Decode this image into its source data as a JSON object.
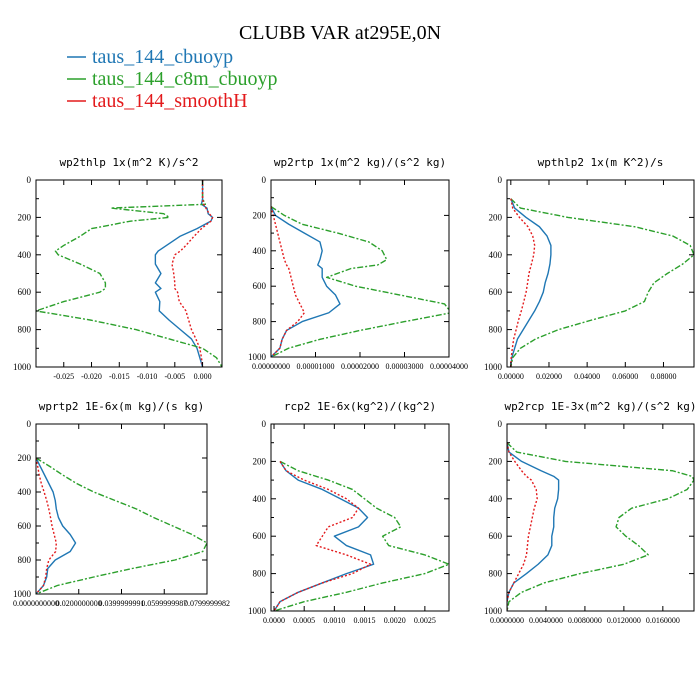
{
  "title": "CLUBB VAR at295E,0N",
  "colors": {
    "series1": "#1f77b4",
    "series2": "#2ca02c",
    "series3": "#e31a1c",
    "axis": "#000000"
  },
  "legend": [
    {
      "name": "taus_144_cbuoyp",
      "color": "#1f77b4",
      "dash": "solid"
    },
    {
      "name": "taus_144_c8m_cbuoyp",
      "color": "#2ca02c",
      "dash": "dashdot"
    },
    {
      "name": "taus_144_smoothH",
      "color": "#e31a1c",
      "dash": "dotted"
    }
  ],
  "chart_data": [
    {
      "type": "line",
      "title": "wp2thlp  1x(m^2 K)/s^2",
      "xlim": [
        -0.03,
        0.0035
      ],
      "ylim": [
        0,
        1000
      ],
      "xticks": [
        -0.025,
        -0.02,
        -0.015,
        -0.01,
        -0.005,
        0.0
      ],
      "xticklabels": [
        "-0.025",
        "-0.020",
        "-0.015",
        "-0.010",
        "-0.005",
        "0.000"
      ],
      "yticks": [
        0,
        200,
        400,
        600,
        800,
        1000
      ],
      "y": [
        0,
        100,
        130,
        150,
        180,
        200,
        220,
        260,
        300,
        350,
        380,
        400,
        450,
        500,
        550,
        580,
        600,
        650,
        700,
        750,
        800,
        850,
        900,
        950,
        1000
      ],
      "series": [
        {
          "name": "taus_144_cbuoyp",
          "x": [
            0.0,
            0.0,
            -0.0002,
            0.0008,
            0.001,
            0.0018,
            0.0015,
            -0.001,
            -0.004,
            -0.0065,
            -0.008,
            -0.0085,
            -0.0085,
            -0.0075,
            -0.0085,
            -0.0075,
            -0.0085,
            -0.0077,
            -0.0078,
            -0.006,
            -0.004,
            -0.002,
            -0.001,
            -0.0005,
            0.0
          ]
        },
        {
          "name": "taus_144_c8m_cbuoyp",
          "x": [
            0.0,
            0.0,
            0.0005,
            -0.0165,
            -0.007,
            -0.006,
            -0.013,
            -0.02,
            -0.022,
            -0.025,
            -0.0265,
            -0.026,
            -0.022,
            -0.0185,
            -0.0175,
            -0.0175,
            -0.0185,
            -0.025,
            -0.03,
            -0.02,
            -0.012,
            -0.006,
            0.0,
            0.0025,
            0.0035
          ]
        },
        {
          "name": "taus_144_smoothH",
          "x": [
            0.0,
            0.0,
            0.0002,
            0.0006,
            0.0012,
            0.0018,
            0.0015,
            -0.0002,
            -0.0015,
            -0.003,
            -0.004,
            -0.005,
            -0.0055,
            -0.0052,
            -0.005,
            -0.005,
            -0.0045,
            -0.0042,
            -0.003,
            -0.0025,
            -0.002,
            -0.0012,
            -0.0005,
            -0.0002,
            0.0
          ]
        }
      ]
    },
    {
      "type": "line",
      "title": "wp2rtp  1x(m^2 kg)/(s^2 kg)",
      "xlim": [
        0,
        4e-05
      ],
      "ylim": [
        0,
        1000
      ],
      "xticks": [
        0,
        1e-05,
        2e-05,
        3e-05,
        4e-05
      ],
      "xticklabels": [
        "0.00000000",
        "0.00001000",
        "0.00002000",
        "0.00003000",
        "0.00004000"
      ],
      "yticks": [
        0,
        200,
        400,
        600,
        800,
        1000
      ],
      "y": [
        150,
        200,
        250,
        300,
        350,
        400,
        450,
        480,
        500,
        550,
        600,
        650,
        700,
        750,
        800,
        850,
        900,
        950,
        1000
      ],
      "series": [
        {
          "name": "taus_144_cbuoyp",
          "x": [
            0,
            1e-06,
            4e-06,
            7.5e-06,
            1.1e-05,
            1.15e-05,
            1.1e-05,
            1.05e-05,
            1.15e-05,
            1.15e-05,
            1.25e-05,
            1.45e-05,
            1.55e-05,
            1.3e-05,
            7e-06,
            3.5e-06,
            2.5e-06,
            2e-06,
            0
          ]
        },
        {
          "name": "taus_144_c8m_cbuoyp",
          "x": [
            0,
            3e-06,
            7e-06,
            1.5e-05,
            2.2e-05,
            2.5e-05,
            2.6e-05,
            2.4e-05,
            1.8e-05,
            1.25e-05,
            1.9e-05,
            2.9e-05,
            3.9e-05,
            4.05e-05,
            3e-05,
            2e-05,
            1.1e-05,
            4e-06,
            0
          ]
        },
        {
          "name": "taus_144_smoothH",
          "x": [
            0,
            5e-07,
            1e-06,
            1.5e-06,
            2e-06,
            2.5e-06,
            3e-06,
            3.5e-06,
            4e-06,
            4.5e-06,
            5e-06,
            5.5e-06,
            6.5e-06,
            7.5e-06,
            6e-06,
            3.5e-06,
            2.5e-06,
            2e-06,
            0
          ]
        }
      ]
    },
    {
      "type": "line",
      "title": "wpthlp2  1x(m K^2)/s",
      "xlim": [
        -0.002,
        0.096
      ],
      "ylim": [
        0,
        1000
      ],
      "xticks": [
        0,
        0.02,
        0.04,
        0.06,
        0.08
      ],
      "xticklabels": [
        "0.00000",
        "0.02000",
        "0.04000",
        "0.06000",
        "0.08000"
      ],
      "yticks": [
        0,
        200,
        400,
        600,
        800,
        1000
      ],
      "y": [
        100,
        150,
        200,
        250,
        300,
        350,
        400,
        450,
        500,
        550,
        600,
        650,
        700,
        750,
        800,
        850,
        900,
        950,
        1000
      ],
      "series": [
        {
          "name": "taus_144_cbuoyp",
          "x": [
            0,
            0.002,
            0.008,
            0.015,
            0.019,
            0.021,
            0.021,
            0.0205,
            0.0195,
            0.018,
            0.017,
            0.015,
            0.0125,
            0.0095,
            0.0065,
            0.0035,
            0.002,
            0.0005,
            0
          ]
        },
        {
          "name": "taus_144_c8m_cbuoyp",
          "x": [
            0,
            0.005,
            0.03,
            0.065,
            0.085,
            0.094,
            0.096,
            0.09,
            0.082,
            0.075,
            0.072,
            0.07,
            0.06,
            0.042,
            0.025,
            0.013,
            0.005,
            0.001,
            0
          ]
        },
        {
          "name": "taus_144_smoothH",
          "x": [
            0,
            0.001,
            0.0045,
            0.009,
            0.0115,
            0.0125,
            0.012,
            0.0108,
            0.0095,
            0.0088,
            0.008,
            0.0068,
            0.0055,
            0.004,
            0.0028,
            0.0015,
            0.0008,
            0.0002,
            0
          ]
        }
      ]
    },
    {
      "type": "line",
      "title": "wprtp2  1E-6x(m kg)/(s kg)",
      "xlim": [
        0,
        0.08
      ],
      "ylim": [
        0,
        1000
      ],
      "xticks": [
        0,
        0.02,
        0.04,
        0.06,
        0.08
      ],
      "xticklabels": [
        "0.0000000000",
        "0.0200000000",
        "0.0399999991",
        "0.0599999987",
        "0.0799999982"
      ],
      "yticks": [
        0,
        200,
        400,
        600,
        800,
        1000
      ],
      "y": [
        200,
        250,
        300,
        350,
        400,
        450,
        500,
        550,
        600,
        650,
        700,
        750,
        800,
        850,
        900,
        950,
        1000
      ],
      "series": [
        {
          "name": "taus_144_cbuoyp",
          "x": [
            0,
            0.002,
            0.004,
            0.006,
            0.008,
            0.009,
            0.0095,
            0.0105,
            0.0125,
            0.016,
            0.0185,
            0.016,
            0.009,
            0.0055,
            0.005,
            0.0035,
            0
          ]
        },
        {
          "name": "taus_144_c8m_cbuoyp",
          "x": [
            0,
            0.0065,
            0.0125,
            0.019,
            0.027,
            0.037,
            0.047,
            0.055,
            0.064,
            0.073,
            0.08,
            0.078,
            0.065,
            0.045,
            0.027,
            0.01,
            0
          ]
        },
        {
          "name": "taus_144_smoothH",
          "x": [
            0,
            0.0008,
            0.0015,
            0.0025,
            0.0038,
            0.005,
            0.006,
            0.0068,
            0.0075,
            0.0085,
            0.0095,
            0.0092,
            0.006,
            0.005,
            0.0045,
            0.0035,
            0
          ]
        }
      ]
    },
    {
      "type": "line",
      "title": "rcp2  1E-6x(kg^2)/(kg^2)",
      "xlim": [
        -5e-05,
        0.0029
      ],
      "ylim": [
        0,
        1000
      ],
      "xticks": [
        0,
        0.0005,
        0.001,
        0.0015,
        0.002,
        0.0025
      ],
      "xticklabels": [
        "0.0000",
        "0.0005",
        "0.0010",
        "0.0015",
        "0.0020",
        "0.0025"
      ],
      "yticks": [
        0,
        200,
        400,
        600,
        800,
        1000
      ],
      "y": [
        200,
        250,
        300,
        350,
        400,
        450,
        500,
        550,
        600,
        650,
        700,
        750,
        800,
        850,
        900,
        950,
        1000
      ],
      "series": [
        {
          "name": "taus_144_cbuoyp",
          "x": [
            0.0001,
            0.0002,
            0.0004,
            0.0008,
            0.0011,
            0.0014,
            0.00155,
            0.0014,
            0.001,
            0.0012,
            0.0016,
            0.00165,
            0.0012,
            0.0008,
            0.0004,
            0.0001,
            0
          ]
        },
        {
          "name": "taus_144_c8m_cbuoyp",
          "x": [
            0.0001,
            0.0004,
            0.0009,
            0.0013,
            0.0015,
            0.0017,
            0.002,
            0.0021,
            0.0018,
            0.0019,
            0.0025,
            0.0029,
            0.0025,
            0.0018,
            0.0012,
            0.0005,
            0
          ]
        },
        {
          "name": "taus_144_smoothH",
          "x": [
            0.0001,
            0.0002,
            0.0005,
            0.0009,
            0.0012,
            0.0014,
            0.0013,
            0.0009,
            0.0008,
            0.0007,
            0.0012,
            0.0016,
            0.0013,
            0.0008,
            0.0004,
            0.0001,
            0
          ]
        }
      ]
    },
    {
      "type": "line",
      "title": "wp2rcp  1E-3x(m^2 kg)/(s^2 kg)",
      "xlim": [
        0,
        0.0192
      ],
      "ylim": [
        0,
        1000
      ],
      "xticks": [
        0,
        0.004,
        0.008,
        0.012,
        0.016
      ],
      "xticklabels": [
        "0.0000000",
        "0.0040000",
        "0.0080000",
        "0.0120000",
        "0.0160000"
      ],
      "yticks": [
        0,
        200,
        400,
        600,
        800,
        1000
      ],
      "y": [
        100,
        150,
        200,
        250,
        280,
        300,
        350,
        400,
        450,
        500,
        550,
        600,
        650,
        700,
        750,
        800,
        850,
        900,
        950,
        1000
      ],
      "series": [
        {
          "name": "taus_144_cbuoyp",
          "x": [
            0,
            0.0002,
            0.0015,
            0.0035,
            0.0048,
            0.0053,
            0.0053,
            0.0052,
            0.0049,
            0.0048,
            0.0048,
            0.0046,
            0.0046,
            0.0042,
            0.0032,
            0.002,
            0.0007,
            0.0002,
            0,
            0
          ]
        },
        {
          "name": "taus_144_c8m_cbuoyp",
          "x": [
            0,
            0.001,
            0.006,
            0.017,
            0.019,
            0.0192,
            0.0185,
            0.0165,
            0.0128,
            0.0115,
            0.0112,
            0.0122,
            0.0135,
            0.0145,
            0.012,
            0.0075,
            0.0038,
            0.0015,
            0.0002,
            0
          ]
        },
        {
          "name": "taus_144_smoothH",
          "x": [
            0,
            0.0002,
            0.0008,
            0.0015,
            0.002,
            0.0025,
            0.003,
            0.0031,
            0.0028,
            0.0026,
            0.0024,
            0.0022,
            0.0021,
            0.002,
            0.0017,
            0.0012,
            0.0007,
            0.0002,
            0,
            0
          ]
        }
      ]
    }
  ]
}
